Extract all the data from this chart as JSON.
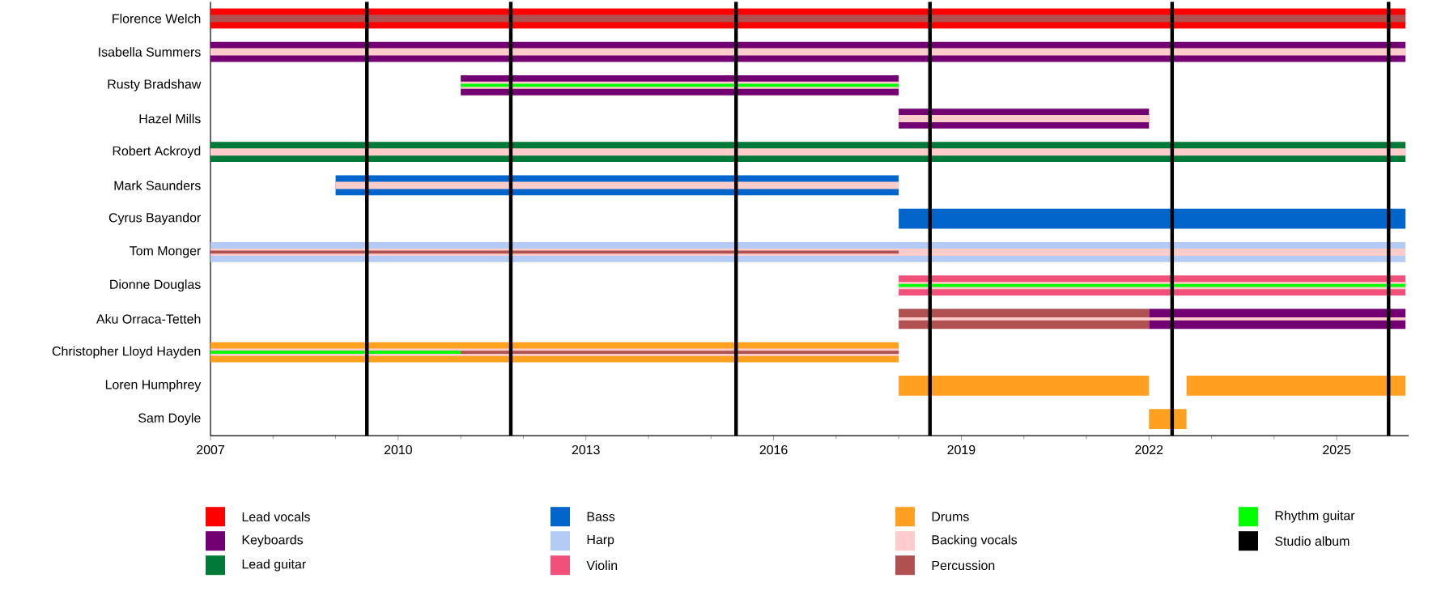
{
  "chart_data": {
    "type": "bar",
    "orientation": "horizontal",
    "legend": "bottom",
    "categories": [
      "Florence Welch",
      "Isabella Summers",
      "Rusty Bradshaw",
      "Hazel Mills",
      "Robert Ackroyd",
      "Mark Saunders",
      "Cyrus Bayandor",
      "Tom Monger",
      "Dionne Douglas",
      "Aku Orraca-Tetteh",
      "Christopher Lloyd Hayden",
      "Loren Humphrey",
      "Sam Doyle"
    ],
    "xlim": [
      2007,
      2026.15
    ],
    "xticks": [
      2007,
      2010,
      2013,
      2016,
      2019,
      2022,
      2025
    ],
    "series": [
      {
        "name": "Lead vocals",
        "color": "#ff0000",
        "base": [
          2007,
          null,
          null,
          null,
          null,
          null,
          null,
          null,
          null,
          null,
          null,
          null,
          null
        ],
        "values": [
          19.1,
          null,
          null,
          null,
          null,
          null,
          null,
          null,
          null,
          null,
          null,
          null,
          null
        ]
      },
      {
        "name": "Keyboards",
        "color": "#730073",
        "base": [
          null,
          2007,
          2011,
          2018,
          null,
          null,
          null,
          null,
          null,
          2022,
          null,
          null,
          null
        ],
        "values": [
          null,
          19.1,
          7,
          4,
          null,
          null,
          null,
          null,
          null,
          4.1,
          null,
          null,
          null
        ]
      },
      {
        "name": "Lead guitar",
        "color": "#007a36",
        "base": [
          null,
          null,
          null,
          null,
          2007,
          null,
          null,
          null,
          null,
          null,
          null,
          null,
          null
        ],
        "values": [
          null,
          null,
          null,
          null,
          19.1,
          null,
          null,
          null,
          null,
          null,
          null,
          null,
          null
        ]
      },
      {
        "name": "Bass",
        "color": "#0066cc",
        "base": [
          null,
          null,
          null,
          null,
          null,
          2009,
          2018,
          null,
          null,
          null,
          null,
          null,
          null
        ],
        "values": [
          null,
          null,
          null,
          null,
          null,
          9,
          8.1,
          null,
          null,
          null,
          null,
          null,
          null
        ]
      },
      {
        "name": "Harp",
        "color": "#b4ccf5",
        "base": [
          null,
          null,
          null,
          null,
          null,
          null,
          null,
          2007,
          null,
          null,
          null,
          null,
          null
        ],
        "values": [
          null,
          null,
          null,
          null,
          null,
          null,
          null,
          19.1,
          null,
          null,
          null,
          null,
          null
        ]
      },
      {
        "name": "Violin",
        "color": "#f0507a",
        "base": [
          null,
          null,
          null,
          null,
          null,
          null,
          null,
          null,
          2018,
          null,
          null,
          null,
          null
        ],
        "values": [
          null,
          null,
          null,
          null,
          null,
          null,
          null,
          null,
          8.1,
          null,
          null,
          null,
          null
        ]
      },
      {
        "name": "Drums",
        "color": "#ffa020",
        "base": [
          null,
          null,
          null,
          null,
          null,
          null,
          null,
          null,
          null,
          null,
          2007,
          2018,
          2022
        ],
        "values": [
          null,
          null,
          null,
          null,
          null,
          null,
          null,
          null,
          null,
          null,
          11,
          4,
          0.6
        ]
      },
      {
        "color": "#ffa020",
        "base": [
          null,
          null,
          null,
          null,
          null,
          null,
          null,
          null,
          null,
          null,
          null,
          2022.6,
          null
        ],
        "values": [
          null,
          null,
          null,
          null,
          null,
          null,
          null,
          null,
          null,
          null,
          null,
          3.5,
          null
        ]
      },
      {
        "color": "#b05050",
        "base": [
          null,
          null,
          null,
          null,
          null,
          null,
          null,
          null,
          null,
          2018,
          null,
          null,
          null
        ],
        "values": [
          null,
          null,
          null,
          null,
          null,
          null,
          null,
          null,
          null,
          4,
          null,
          null,
          null
        ]
      },
      {
        "name": "Backing vocals",
        "color": "#ffcccc",
        "base": [
          null,
          2007,
          2011,
          2018,
          2007,
          2009,
          null,
          2007,
          2018,
          2018,
          2007,
          null,
          null
        ],
        "values": [
          null,
          19.1,
          7,
          4,
          19.1,
          9,
          null,
          19.1,
          8.1,
          8.1,
          11,
          null,
          null
        ]
      },
      {
        "name": "Percussion",
        "color": "#b05050",
        "base": [
          2007,
          null,
          null,
          null,
          null,
          null,
          null,
          2007,
          null,
          null,
          2007,
          null,
          null
        ],
        "values": [
          19.1,
          null,
          null,
          null,
          null,
          null,
          null,
          11,
          null,
          null,
          11,
          null,
          null
        ]
      },
      {
        "name": "Rhythm guitar",
        "color": "#00ff00",
        "base": [
          null,
          null,
          2011,
          null,
          null,
          null,
          null,
          null,
          2018,
          null,
          2007,
          null,
          null
        ],
        "values": [
          null,
          null,
          7,
          null,
          null,
          null,
          null,
          null,
          8.1,
          null,
          4,
          null,
          null
        ]
      }
    ],
    "ref_lines": [
      {
        "axis": "x",
        "value": 2009.5,
        "color": "#000000",
        "label": "Studio album"
      },
      {
        "axis": "x",
        "value": 2011.8,
        "color": "#000000"
      },
      {
        "axis": "x",
        "value": 2015.4,
        "color": "#000000"
      },
      {
        "axis": "x",
        "value": 2018.5,
        "color": "#000000"
      },
      {
        "axis": "x",
        "value": 2022.37,
        "color": "#000000"
      },
      {
        "axis": "x",
        "value": 2025.83,
        "color": "#000000"
      }
    ]
  }
}
